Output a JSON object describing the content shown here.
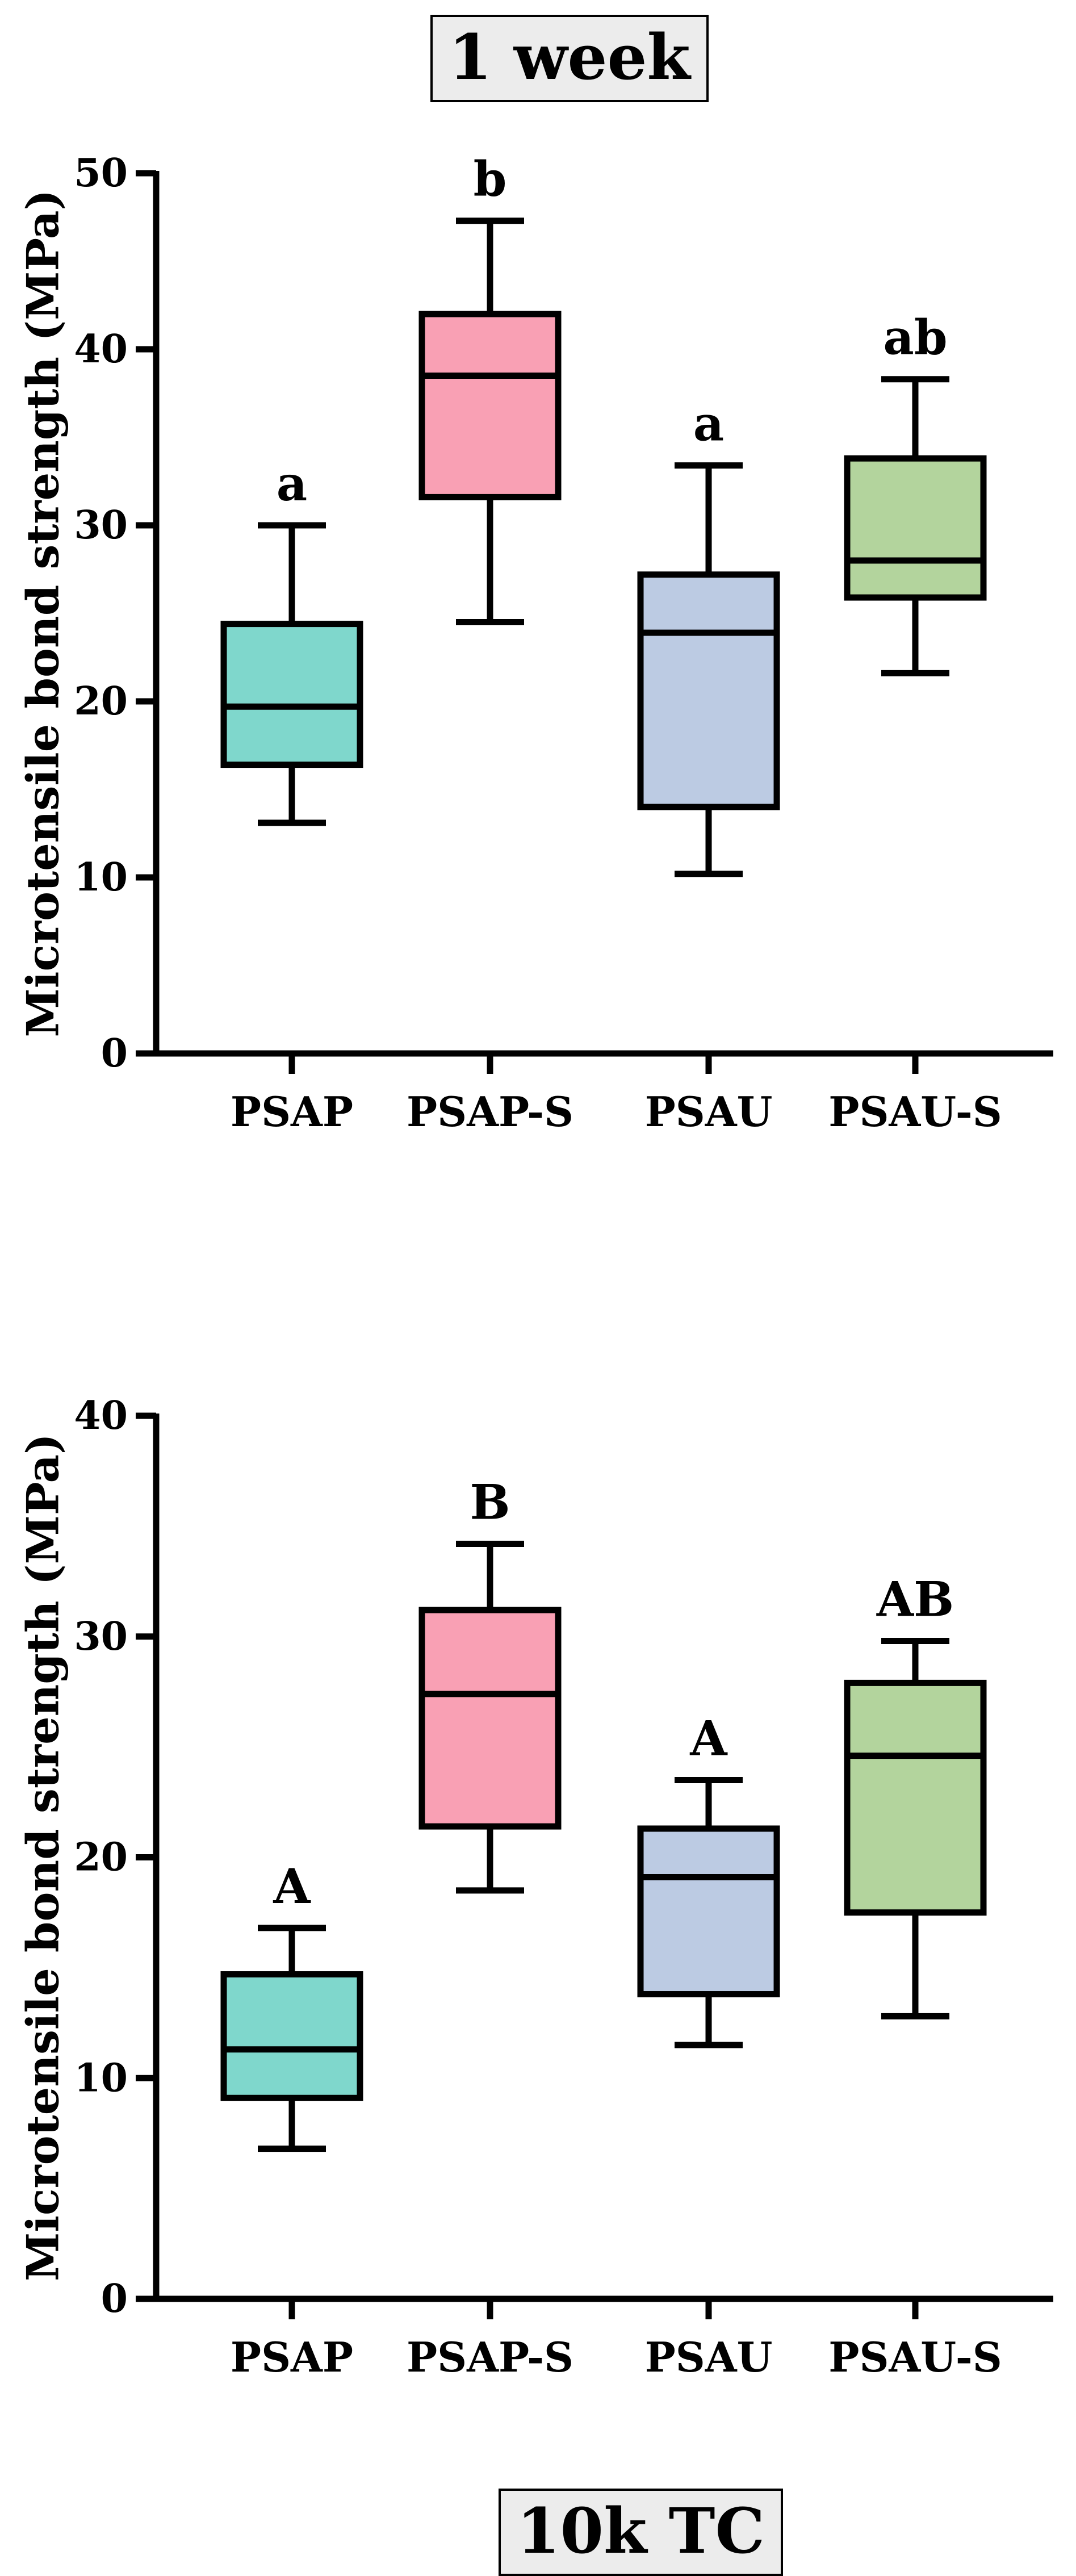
{
  "chart_data": [
    {
      "type": "box",
      "title": "1 week",
      "ylabel": "Microtensile bond strength (MPa)",
      "xlabel": "",
      "ylim": [
        0,
        50
      ],
      "yticks": [
        0,
        10,
        20,
        30,
        40,
        50
      ],
      "ytick_labels": [
        "0",
        "10",
        "20",
        "30",
        "40",
        "50"
      ],
      "categories": [
        "PSAP",
        "PSAP-S",
        "PSAU",
        "PSAU-S"
      ],
      "colors": [
        "#7fd7cc",
        "#f9a0b4",
        "#bccbe3",
        "#b3d49d"
      ],
      "boxes": [
        {
          "min": 13.1,
          "q1": 16.4,
          "median": 19.7,
          "q3": 24.4,
          "max": 30.0,
          "significance": "a"
        },
        {
          "min": 24.5,
          "q1": 31.6,
          "median": 38.5,
          "q3": 42.0,
          "max": 47.3,
          "significance": "b"
        },
        {
          "min": 10.2,
          "q1": 14.0,
          "median": 23.9,
          "q3": 27.2,
          "max": 33.4,
          "significance": "a"
        },
        {
          "min": 21.6,
          "q1": 25.9,
          "median": 28.0,
          "q3": 33.8,
          "max": 38.3,
          "significance": "ab"
        }
      ]
    },
    {
      "type": "box",
      "title": "10k TC",
      "ylabel": "Microtensile bond strength (MPa)",
      "xlabel": "",
      "ylim": [
        0,
        40
      ],
      "yticks": [
        0,
        10,
        20,
        30,
        40
      ],
      "ytick_labels": [
        "0",
        "10",
        "20",
        "30",
        "40"
      ],
      "categories": [
        "PSAP",
        "PSAP-S",
        "PSAU",
        "PSAU-S"
      ],
      "colors": [
        "#7fd7cc",
        "#f9a0b4",
        "#bccbe3",
        "#b3d49d"
      ],
      "boxes": [
        {
          "min": 6.8,
          "q1": 9.1,
          "median": 11.3,
          "q3": 14.7,
          "max": 16.8,
          "significance": "A"
        },
        {
          "min": 18.5,
          "q1": 21.4,
          "median": 27.4,
          "q3": 31.2,
          "max": 34.2,
          "significance": "B"
        },
        {
          "min": 11.5,
          "q1": 13.8,
          "median": 19.1,
          "q3": 21.3,
          "max": 23.5,
          "significance": "A"
        },
        {
          "min": 12.8,
          "q1": 17.5,
          "median": 24.6,
          "q3": 27.9,
          "max": 29.8,
          "significance": "AB"
        }
      ]
    }
  ]
}
